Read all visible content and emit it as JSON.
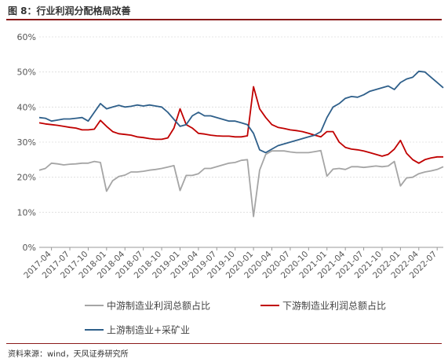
{
  "figure": {
    "title": "图 8：行业利润分配格局改善",
    "source": "资料来源：wind，天风证券研究所"
  },
  "chart_data": {
    "type": "line",
    "ylim": [
      0,
      60
    ],
    "yticks": [
      0,
      10,
      20,
      30,
      40,
      50,
      60
    ],
    "ytick_labels": [
      "0%",
      "10%",
      "20%",
      "30%",
      "40%",
      "50%",
      "60%"
    ],
    "xtick_labels": [
      "2017-04",
      "2017-07",
      "2017-10",
      "2018-01",
      "2018-04",
      "2018-07",
      "2018-10",
      "2019-01",
      "2019-04",
      "2019-07",
      "2019-10",
      "2020-01",
      "2020-04",
      "2020-07",
      "2020-10",
      "2021-01",
      "2021-04",
      "2021-07",
      "2021-10",
      "2022-01",
      "2022-04",
      "2022-07"
    ],
    "grid": "horizontal",
    "legend_position": "bottom",
    "x": [
      "2017-02",
      "2017-03",
      "2017-04",
      "2017-05",
      "2017-06",
      "2017-07",
      "2017-08",
      "2017-09",
      "2017-10",
      "2017-11",
      "2017-12",
      "2018-01",
      "2018-02",
      "2018-03",
      "2018-04",
      "2018-05",
      "2018-06",
      "2018-07",
      "2018-08",
      "2018-09",
      "2018-10",
      "2018-11",
      "2018-12",
      "2019-01",
      "2019-02",
      "2019-03",
      "2019-04",
      "2019-05",
      "2019-06",
      "2019-07",
      "2019-08",
      "2019-09",
      "2019-10",
      "2019-11",
      "2019-12",
      "2020-01",
      "2020-02",
      "2020-03",
      "2020-04",
      "2020-05",
      "2020-06",
      "2020-07",
      "2020-08",
      "2020-09",
      "2020-10",
      "2020-11",
      "2020-12",
      "2021-01",
      "2021-02",
      "2021-03",
      "2021-04",
      "2021-05",
      "2021-06",
      "2021-07",
      "2021-08",
      "2021-09",
      "2021-10",
      "2021-11",
      "2021-12",
      "2022-01",
      "2022-02",
      "2022-03",
      "2022-04",
      "2022-05",
      "2022-06",
      "2022-07",
      "2022-08"
    ],
    "series": [
      {
        "name": "中游制造业利润总额占比",
        "color": "#a5a5a5",
        "values": [
          22.0,
          22.5,
          24.0,
          23.8,
          23.5,
          23.7,
          23.8,
          24.0,
          24.0,
          24.5,
          24.2,
          16.0,
          19.0,
          20.2,
          20.6,
          21.5,
          21.5,
          21.7,
          22.0,
          22.2,
          22.5,
          22.9,
          23.3,
          16.2,
          20.5,
          20.5,
          21.0,
          22.5,
          22.5,
          23.0,
          23.5,
          24.0,
          24.2,
          24.8,
          25.0,
          8.8,
          22.0,
          26.5,
          27.5,
          27.5,
          27.5,
          27.2,
          27.0,
          27.0,
          27.0,
          27.3,
          27.6,
          20.3,
          22.3,
          22.5,
          22.2,
          23.0,
          23.0,
          22.8,
          23.0,
          23.2,
          23.0,
          23.2,
          24.5,
          17.5,
          19.8,
          20.0,
          21.0,
          21.5,
          21.8,
          22.2,
          23.0
        ]
      },
      {
        "name": "下游制造业利润总额占比",
        "color": "#c00000",
        "values": [
          35.5,
          35.2,
          35.0,
          34.8,
          34.5,
          34.2,
          34.0,
          33.5,
          33.5,
          33.7,
          36.2,
          34.5,
          33.0,
          32.4,
          32.2,
          32.0,
          31.5,
          31.3,
          31.0,
          30.8,
          30.8,
          31.2,
          34.0,
          39.5,
          35.0,
          34.0,
          32.5,
          32.3,
          32.0,
          31.8,
          31.7,
          31.7,
          31.5,
          31.5,
          31.8,
          45.8,
          39.5,
          37.0,
          35.0,
          34.2,
          33.9,
          33.5,
          33.3,
          33.0,
          32.5,
          32.0,
          31.5,
          33.0,
          33.0,
          30.0,
          28.5,
          28.0,
          27.8,
          27.5,
          27.0,
          26.5,
          26.0,
          26.5,
          28.0,
          30.5,
          26.8,
          25.0,
          24.0,
          25.0,
          25.5,
          25.8,
          25.8
        ]
      },
      {
        "name": "上游制造业+采矿业",
        "color": "#2e5f8a",
        "values": [
          37.0,
          36.8,
          36.0,
          36.3,
          36.6,
          36.6,
          36.8,
          37.0,
          36.0,
          38.5,
          41.0,
          39.5,
          40.0,
          40.5,
          40.0,
          40.2,
          40.6,
          40.3,
          40.6,
          40.3,
          40.0,
          38.5,
          36.5,
          34.5,
          35.0,
          37.5,
          38.5,
          37.5,
          37.5,
          37.0,
          36.5,
          36.0,
          36.0,
          35.5,
          35.0,
          32.5,
          27.8,
          27.0,
          28.0,
          29.0,
          29.5,
          30.0,
          30.5,
          31.0,
          31.5,
          32.0,
          33.0,
          37.0,
          40.0,
          41.0,
          42.5,
          43.0,
          42.8,
          43.5,
          44.5,
          45.0,
          45.5,
          46.0,
          45.0,
          47.0,
          48.0,
          48.5,
          50.2,
          50.0,
          48.5,
          47.0,
          45.5
        ]
      }
    ]
  }
}
